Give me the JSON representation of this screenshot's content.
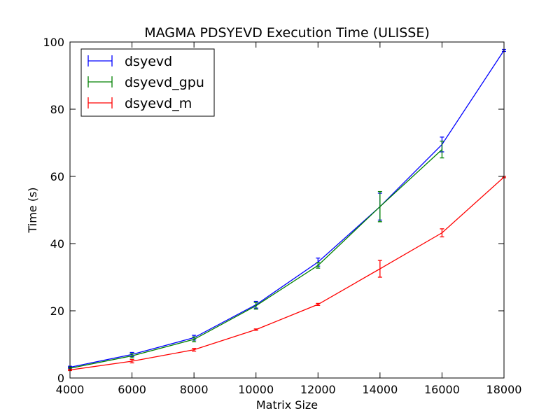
{
  "chart_data": {
    "type": "line",
    "title": "MAGMA PDSYEVD Execution Time (ULISSE)",
    "xlabel": "Matrix Size",
    "ylabel": "Time (s)",
    "xlim": [
      4000,
      18000
    ],
    "ylim": [
      0,
      100
    ],
    "xticks": [
      4000,
      6000,
      8000,
      10000,
      12000,
      14000,
      16000,
      18000
    ],
    "yticks": [
      0,
      20,
      40,
      60,
      80,
      100
    ],
    "grid": false,
    "legend_position": "top-left",
    "x": [
      4000,
      6000,
      8000,
      10000,
      12000,
      14000,
      16000,
      18000
    ],
    "series": [
      {
        "name": "dsyevd",
        "color": "#0000ff",
        "values": [
          3.2,
          7.0,
          12.0,
          21.8,
          34.5,
          51.0,
          69.5,
          97.5
        ],
        "errors": [
          0.3,
          0.6,
          0.7,
          1.0,
          1.2,
          4.0,
          2.2,
          0.3
        ]
      },
      {
        "name": "dsyevd_gpu",
        "color": "#008000",
        "values": [
          2.9,
          6.6,
          11.5,
          21.5,
          33.5,
          51.0,
          68.0,
          null
        ],
        "errors": [
          0.3,
          0.6,
          0.7,
          1.0,
          0.8,
          4.5,
          2.5,
          null
        ]
      },
      {
        "name": "dsyevd_m",
        "color": "#ff0000",
        "values": [
          2.4,
          5.0,
          8.4,
          14.4,
          21.9,
          32.5,
          43.2,
          59.8
        ],
        "errors": [
          0.2,
          0.5,
          0.4,
          0.2,
          0.3,
          2.5,
          1.2,
          0.2
        ]
      }
    ]
  }
}
